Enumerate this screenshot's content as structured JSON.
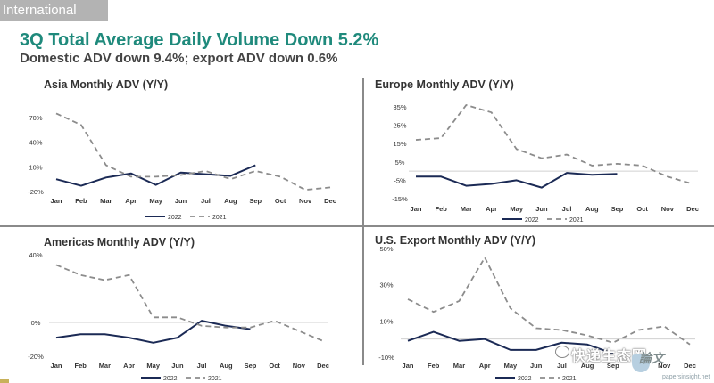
{
  "section_tag": "International",
  "title": "3Q Total Average Daily Volume Down 5.2%",
  "subtitle": "Domestic ADV down 9.4%; export ADV down 0.6%",
  "watermark": {
    "text": "快递生态圈",
    "site": "papersinsight.net",
    "icon": "wechat-icon"
  },
  "colors": {
    "series_2022": "#1b2a55",
    "series_2021": "#8c8c8c",
    "title": "#1f8a7c",
    "divider": "#8a8a8a"
  },
  "chart_data": [
    {
      "type": "line",
      "title": "Asia Monthly ADV (Y/Y)",
      "categories": [
        "Jan",
        "Feb",
        "Mar",
        "Apr",
        "May",
        "Jun",
        "Jul",
        "Aug",
        "Sep",
        "Oct",
        "Nov",
        "Dec"
      ],
      "yticks": [
        "70%",
        "40%",
        "10%",
        "-20%"
      ],
      "ylim": [
        -20,
        70
      ],
      "legend": [
        "2022",
        "2021"
      ],
      "series": [
        {
          "name": "2022",
          "values": [
            -5,
            -13,
            -3,
            2,
            -12,
            3,
            1,
            -1,
            12,
            null,
            null,
            null
          ]
        },
        {
          "name": "2021",
          "values": [
            75,
            61,
            12,
            -2,
            -2,
            0,
            5,
            -5,
            5,
            -2,
            -18,
            -15
          ]
        }
      ]
    },
    {
      "type": "line",
      "title": "Europe Monthly ADV (Y/Y)",
      "categories": [
        "Jan",
        "Feb",
        "Mar",
        "Apr",
        "May",
        "Jun",
        "Jul",
        "Aug",
        "Sep",
        "Oct",
        "Nov",
        "Dec"
      ],
      "yticks": [
        "35%",
        "25%",
        "15%",
        "5%",
        "-5%",
        "-15%"
      ],
      "ylim": [
        -15,
        35
      ],
      "legend": [
        "2022",
        "2021"
      ],
      "series": [
        {
          "name": "2022",
          "values": [
            -3,
            -3,
            -8,
            -7,
            -5,
            -9,
            -1,
            -2,
            -1.5,
            null,
            null,
            null
          ]
        },
        {
          "name": "2021",
          "values": [
            17,
            18,
            36,
            32,
            12,
            7,
            9,
            3,
            4,
            3,
            -3,
            -7
          ]
        }
      ]
    },
    {
      "type": "line",
      "title": "Americas Monthly ADV (Y/Y)",
      "categories": [
        "Jan",
        "Feb",
        "Mar",
        "Apr",
        "May",
        "Jun",
        "Jul",
        "Aug",
        "Sep",
        "Oct",
        "Nov",
        "Dec"
      ],
      "yticks": [
        "40%",
        "0%",
        "-20%"
      ],
      "ylim": [
        -20,
        40
      ],
      "legend": [
        "2022",
        "2021"
      ],
      "series": [
        {
          "name": "2022",
          "values": [
            -9,
            -7,
            -7,
            -9,
            -12,
            -9,
            1,
            -2,
            -4,
            null,
            null,
            null
          ]
        },
        {
          "name": "2021",
          "values": [
            34,
            28,
            25,
            28,
            3,
            3,
            -2,
            -3,
            -3,
            1,
            -5,
            -11
          ]
        }
      ]
    },
    {
      "type": "line",
      "title": "U.S. Export Monthly ADV (Y/Y)",
      "categories": [
        "Jan",
        "Feb",
        "Mar",
        "Apr",
        "May",
        "Jun",
        "Jul",
        "Aug",
        "Sep",
        "Oct",
        "Nov",
        "Dec"
      ],
      "yticks": [
        "50%",
        "30%",
        "10%",
        "-10%"
      ],
      "ylim": [
        -10,
        50
      ],
      "legend": [
        "2022",
        "2021"
      ],
      "series": [
        {
          "name": "2022",
          "values": [
            -1,
            4,
            -1,
            0,
            -6,
            -6,
            -2,
            -3,
            -8,
            null,
            null,
            null
          ]
        },
        {
          "name": "2021",
          "values": [
            22,
            15,
            21,
            45,
            17,
            6,
            5,
            2,
            -2,
            5,
            7,
            -3
          ]
        }
      ]
    }
  ]
}
